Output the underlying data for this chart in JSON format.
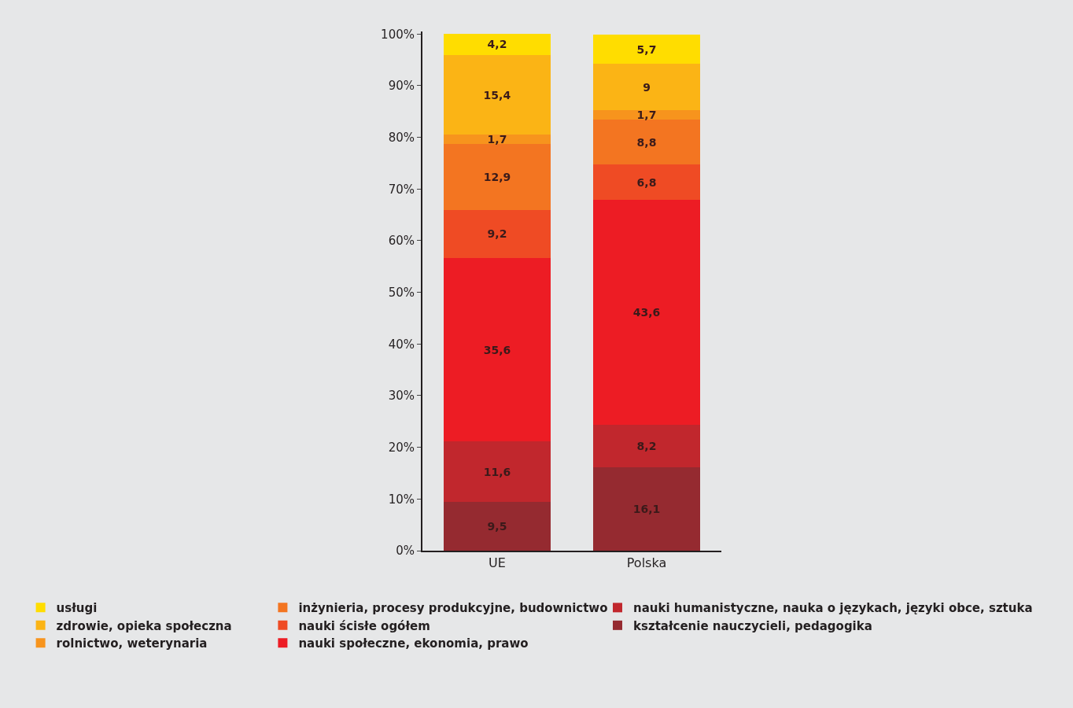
{
  "chart_data": {
    "type": "bar",
    "stacked": true,
    "categories": [
      "UE",
      "Polska"
    ],
    "ylim": [
      0,
      100.5
    ],
    "yticks": [
      {
        "value": 0,
        "label": "0%"
      },
      {
        "value": 10,
        "label": "10%"
      },
      {
        "value": 20,
        "label": "20%"
      },
      {
        "value": 30,
        "label": "30%"
      },
      {
        "value": 40,
        "label": "40%"
      },
      {
        "value": 50,
        "label": "50%"
      },
      {
        "value": 60,
        "label": "60%"
      },
      {
        "value": 70,
        "label": "70%"
      },
      {
        "value": 80,
        "label": "80%"
      },
      {
        "value": 90,
        "label": "90%"
      },
      {
        "value": 100,
        "label": "100%"
      }
    ],
    "grid": false,
    "legend": "bottom",
    "series": [
      {
        "name": "kształcenie nauczycieli, pedagogika",
        "color": "#952a30",
        "values": [
          9.5,
          16.1
        ],
        "value_labels": [
          "9,5",
          "16,1"
        ]
      },
      {
        "name": "nauki humanistyczne, nauka o językach, języki obce, sztuka",
        "color": "#c1272d",
        "values": [
          11.6,
          8.2
        ],
        "value_labels": [
          "11,6",
          "8,2"
        ]
      },
      {
        "name": "nauki społeczne, ekonomia, prawo",
        "color": "#ed1c24",
        "values": [
          35.6,
          43.6
        ],
        "value_labels": [
          "35,6",
          "43,6"
        ]
      },
      {
        "name": "nauki ścisłe ogółem",
        "color": "#ef4b24",
        "values": [
          9.2,
          6.8
        ],
        "value_labels": [
          "9,2",
          "6,8"
        ]
      },
      {
        "name": "inżynieria, procesy produkcyjne, budownictwo",
        "color": "#f37521",
        "values": [
          12.9,
          8.8
        ],
        "value_labels": [
          "12,9",
          "8,8"
        ]
      },
      {
        "name": "rolnictwo, weterynaria",
        "color": "#f7941d",
        "values": [
          1.7,
          1.7
        ],
        "value_labels": [
          "1,7",
          "1,7"
        ]
      },
      {
        "name": "zdrowie, opieka społeczna",
        "color": "#fbb415",
        "values": [
          15.4,
          9
        ],
        "value_labels": [
          "15,4",
          "9"
        ]
      },
      {
        "name": "usługi",
        "color": "#ffdd00",
        "values": [
          4.2,
          5.7
        ],
        "value_labels": [
          "4,2",
          "5,7"
        ]
      }
    ]
  }
}
